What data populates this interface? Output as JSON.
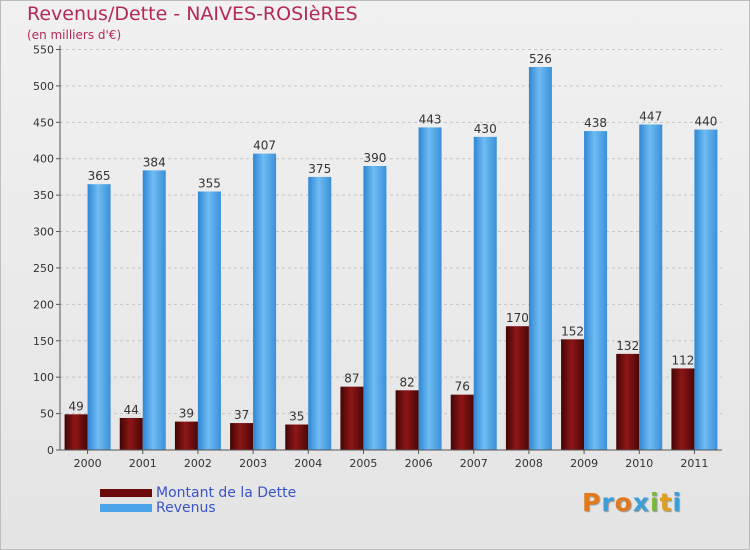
{
  "title": "Revenus/Dette - NAIVES-ROSIèRES",
  "subtitle": "(en milliers d'€)",
  "colors": {
    "dette": "#6b0a0a",
    "revenus": "#4aa3e8",
    "title": "#b5285a",
    "legend_text": "#3b54c8"
  },
  "chart_data": {
    "type": "bar",
    "title": "Revenus/Dette - NAIVES-ROSIèRES",
    "ylabel": "(en milliers d'€)",
    "xlabel": "",
    "ylim": [
      0,
      550
    ],
    "yticks": [
      0,
      50,
      100,
      150,
      200,
      250,
      300,
      350,
      400,
      450,
      500,
      550
    ],
    "grid": true,
    "legend_position": "bottom-left",
    "categories": [
      "2000",
      "2001",
      "2002",
      "2003",
      "2004",
      "2005",
      "2006",
      "2007",
      "2008",
      "2009",
      "2010",
      "2011"
    ],
    "series": [
      {
        "name": "Montant de la Dette",
        "values": [
          49,
          44,
          39,
          37,
          35,
          87,
          82,
          76,
          170,
          152,
          132,
          112
        ]
      },
      {
        "name": "Revenus",
        "values": [
          365,
          384,
          355,
          407,
          375,
          390,
          443,
          430,
          526,
          438,
          447,
          440
        ]
      }
    ]
  },
  "legend": {
    "items": [
      "Montant de la Dette",
      "Revenus"
    ]
  },
  "logo": {
    "text": "Proxiti",
    "letter_colors": [
      "#e07a1c",
      "#3aa0d8",
      "#e07a1c",
      "#3aa0d8",
      "#7ab83a",
      "#e0a01c",
      "#3aa0d8"
    ]
  }
}
